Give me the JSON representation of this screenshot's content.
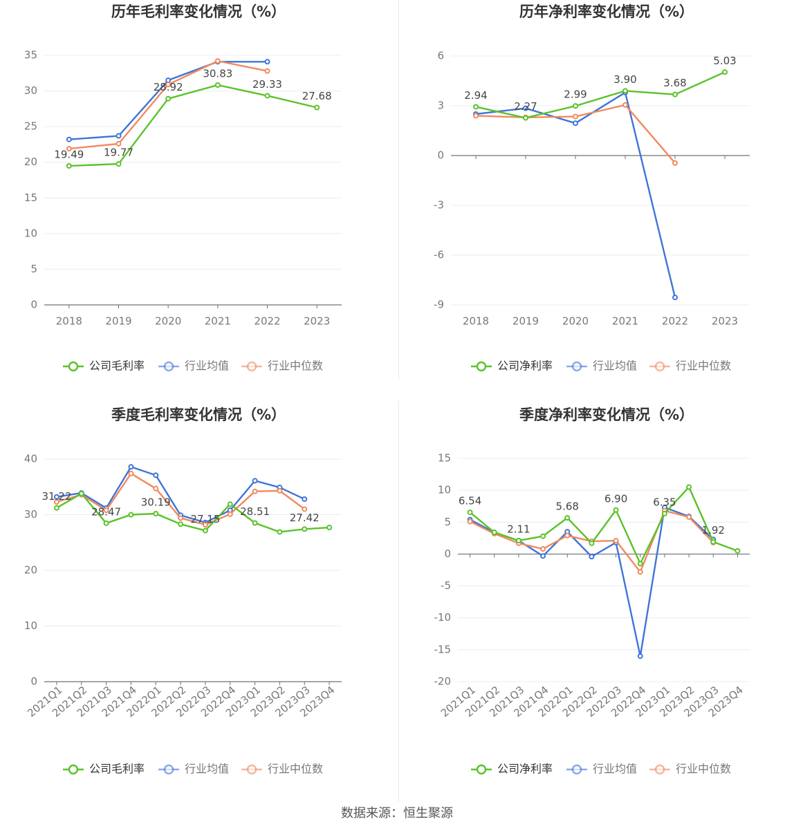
{
  "colors": {
    "company": "#5ac229",
    "industry_avg": "#3f74d8",
    "industry_median": "#f08a5e",
    "grid": "#e9ecf3",
    "axis": "#6e7079",
    "tick_text": "#777777",
    "title_text": "#333333",
    "label_text": "#444444"
  },
  "source": "数据来源：恒生聚源",
  "chart_data": [
    {
      "id": "annual-gross",
      "type": "line",
      "title": "历年毛利率变化情况（%）",
      "categories": [
        "2018",
        "2019",
        "2020",
        "2021",
        "2022",
        "2023"
      ],
      "ylim": [
        0,
        35
      ],
      "yticks": [
        0,
        5,
        10,
        15,
        20,
        25,
        30,
        35
      ],
      "grid": true,
      "legend": "bottom",
      "rotate_x": false,
      "series": [
        {
          "name": "公司毛利率",
          "key": "company",
          "values": [
            19.49,
            19.77,
            28.92,
            30.83,
            29.33,
            27.68
          ],
          "labels": [
            "19.49",
            "19.77",
            "28.92",
            "30.83",
            "29.33",
            "27.68"
          ]
        },
        {
          "name": "行业均值",
          "key": "industry_avg",
          "values": [
            23.2,
            23.7,
            31.5,
            34.1,
            34.1,
            null
          ]
        },
        {
          "name": "行业中位数",
          "key": "industry_median",
          "values": [
            21.9,
            22.6,
            30.9,
            34.2,
            32.8,
            null
          ]
        }
      ]
    },
    {
      "id": "annual-net",
      "type": "line",
      "title": "历年净利率变化情况（%）",
      "categories": [
        "2018",
        "2019",
        "2020",
        "2021",
        "2022",
        "2023"
      ],
      "ylim": [
        -9,
        6
      ],
      "yticks": [
        -9,
        -6,
        -3,
        0,
        3,
        6
      ],
      "grid": true,
      "legend": "bottom",
      "rotate_x": false,
      "series": [
        {
          "name": "公司净利率",
          "key": "company",
          "values": [
            2.94,
            2.27,
            2.99,
            3.9,
            3.68,
            5.03
          ],
          "labels": [
            "2.94",
            "2.27",
            "2.99",
            "3.90",
            "3.68",
            "5.03"
          ]
        },
        {
          "name": "行业均值",
          "key": "industry_avg",
          "values": [
            2.5,
            2.85,
            1.95,
            3.8,
            -8.55,
            null
          ]
        },
        {
          "name": "行业中位数",
          "key": "industry_median",
          "values": [
            2.4,
            2.3,
            2.35,
            3.05,
            -0.45,
            null
          ]
        }
      ]
    },
    {
      "id": "quarterly-gross",
      "type": "line",
      "title": "季度毛利率变化情况（%）",
      "categories": [
        "2021Q1",
        "2021Q2",
        "2021Q3",
        "2021Q4",
        "2022Q1",
        "2022Q2",
        "2022Q3",
        "2022Q4",
        "2023Q1",
        "2023Q2",
        "2023Q3",
        "2023Q4"
      ],
      "ylim": [
        0,
        40
      ],
      "yticks": [
        0,
        10,
        20,
        30,
        40
      ],
      "grid": true,
      "legend": "bottom",
      "rotate_x": true,
      "series": [
        {
          "name": "公司毛利率",
          "key": "company",
          "values": [
            31.22,
            33.8,
            28.47,
            30.0,
            30.19,
            28.3,
            27.15,
            31.9,
            28.51,
            26.9,
            27.42,
            27.7
          ],
          "labels": [
            "31.22",
            "",
            "28.47",
            "",
            "30.19",
            "",
            "27.15",
            "",
            "28.51",
            "",
            "27.42",
            ""
          ]
        },
        {
          "name": "行业均值",
          "key": "industry_avg",
          "values": [
            33.2,
            33.9,
            31.2,
            38.6,
            37.1,
            29.9,
            28.6,
            30.8,
            36.1,
            34.9,
            32.8,
            null
          ]
        },
        {
          "name": "行业中位数",
          "key": "industry_median",
          "values": [
            32.3,
            33.6,
            30.8,
            37.4,
            34.7,
            29.4,
            28.2,
            30.1,
            34.2,
            34.3,
            31.0,
            null
          ]
        }
      ]
    },
    {
      "id": "quarterly-net",
      "type": "line",
      "title": "季度净利率变化情况（%）",
      "categories": [
        "2021Q1",
        "2021Q2",
        "2021Q3",
        "2021Q4",
        "2022Q1",
        "2022Q2",
        "2022Q3",
        "2022Q4",
        "2023Q1",
        "2023Q2",
        "2023Q3",
        "2023Q4"
      ],
      "ylim": [
        -20,
        15
      ],
      "yticks": [
        -20,
        -15,
        -10,
        -5,
        0,
        5,
        10,
        15
      ],
      "grid": true,
      "legend": "bottom",
      "rotate_x": true,
      "series": [
        {
          "name": "公司净利率",
          "key": "company",
          "values": [
            6.54,
            3.4,
            2.11,
            2.8,
            5.68,
            1.7,
            6.9,
            -1.5,
            6.35,
            10.5,
            1.92,
            0.5
          ],
          "labels": [
            "6.54",
            "",
            "2.11",
            "",
            "5.68",
            "",
            "6.90",
            "",
            "6.35",
            "",
            "1.92",
            ""
          ]
        },
        {
          "name": "行业均值",
          "key": "industry_avg",
          "values": [
            5.4,
            3.4,
            2.1,
            -0.3,
            3.5,
            -0.4,
            1.8,
            -16.0,
            7.3,
            5.9,
            2.3,
            null
          ]
        },
        {
          "name": "行业中位数",
          "key": "industry_median",
          "values": [
            5.1,
            3.2,
            1.7,
            0.8,
            2.9,
            2.0,
            2.1,
            -2.8,
            6.8,
            5.8,
            1.8,
            null
          ]
        }
      ]
    }
  ]
}
